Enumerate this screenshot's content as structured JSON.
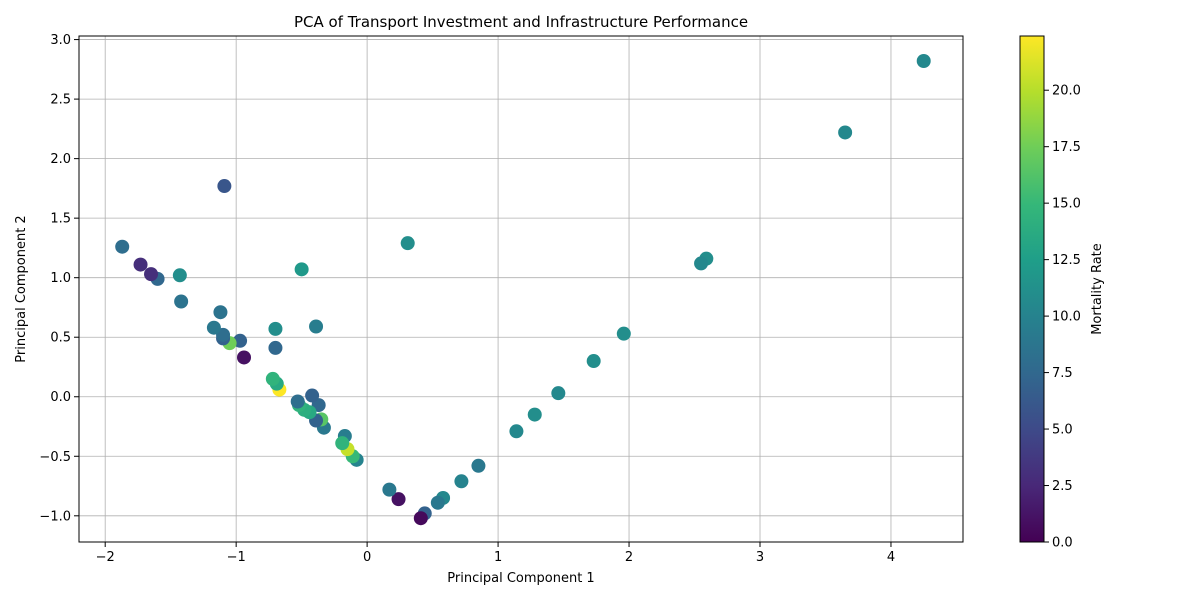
{
  "chart_data": {
    "type": "scatter",
    "title": "PCA of Transport Investment and Infrastructure Performance",
    "xlabel": "Principal Component 1",
    "ylabel": "Principal Component 2",
    "xlim": [
      -2.2,
      4.55
    ],
    "ylim": [
      -1.22,
      3.03
    ],
    "xticks": [
      -2,
      -1,
      0,
      1,
      2,
      3,
      4
    ],
    "xtick_labels": [
      "−2",
      "−1",
      "0",
      "1",
      "2",
      "3",
      "4"
    ],
    "yticks": [
      -1.0,
      -0.5,
      0.0,
      0.5,
      1.0,
      1.5,
      2.0,
      2.5,
      3.0
    ],
    "ytick_labels": [
      "−1.0",
      "−0.5",
      "0.0",
      "0.5",
      "1.0",
      "1.5",
      "2.0",
      "2.5",
      "3.0"
    ],
    "grid": true,
    "colorbar": {
      "label": "Mortality Rate",
      "min": 0.0,
      "max": 22.4,
      "colormap": "viridis",
      "ticks": [
        0.0,
        2.5,
        5.0,
        7.5,
        10.0,
        12.5,
        15.0,
        17.5,
        20.0
      ],
      "tick_labels": [
        "0.0",
        "2.5",
        "5.0",
        "7.5",
        "10.0",
        "12.5",
        "15.0",
        "17.5",
        "20.0"
      ]
    },
    "points": [
      {
        "x": 4.25,
        "y": 2.82,
        "c": 10.5
      },
      {
        "x": 3.65,
        "y": 2.22,
        "c": 10.5
      },
      {
        "x": 2.59,
        "y": 1.16,
        "c": 11.0
      },
      {
        "x": 2.55,
        "y": 1.12,
        "c": 10.5
      },
      {
        "x": 1.96,
        "y": 0.53,
        "c": 11.0
      },
      {
        "x": 1.73,
        "y": 0.3,
        "c": 11.0
      },
      {
        "x": 1.46,
        "y": 0.03,
        "c": 10.5
      },
      {
        "x": 1.28,
        "y": -0.15,
        "c": 11.0
      },
      {
        "x": 1.14,
        "y": -0.29,
        "c": 10.5
      },
      {
        "x": 0.85,
        "y": -0.58,
        "c": 9.0
      },
      {
        "x": 0.72,
        "y": -0.71,
        "c": 10.0
      },
      {
        "x": 0.58,
        "y": -0.85,
        "c": 10.5
      },
      {
        "x": 0.54,
        "y": -0.89,
        "c": 9.0
      },
      {
        "x": 0.44,
        "y": -0.98,
        "c": 7.0
      },
      {
        "x": 0.41,
        "y": -1.02,
        "c": 0.5
      },
      {
        "x": 0.24,
        "y": -0.86,
        "c": 1.0
      },
      {
        "x": 0.17,
        "y": -0.78,
        "c": 9.0
      },
      {
        "x": -0.08,
        "y": -0.53,
        "c": 10.0
      },
      {
        "x": -0.11,
        "y": -0.5,
        "c": 15.0
      },
      {
        "x": -0.15,
        "y": -0.44,
        "c": 20.5
      },
      {
        "x": -0.17,
        "y": -0.33,
        "c": 9.5
      },
      {
        "x": -0.19,
        "y": -0.39,
        "c": 14.5
      },
      {
        "x": -0.33,
        "y": -0.26,
        "c": 9.0
      },
      {
        "x": -0.35,
        "y": -0.19,
        "c": 16.5
      },
      {
        "x": -0.37,
        "y": -0.07,
        "c": 7.5
      },
      {
        "x": -0.39,
        "y": -0.2,
        "c": 7.0
      },
      {
        "x": -0.42,
        "y": 0.01,
        "c": 7.0
      },
      {
        "x": -0.44,
        "y": -0.13,
        "c": 13.5
      },
      {
        "x": -0.48,
        "y": -0.11,
        "c": 14.0
      },
      {
        "x": -0.52,
        "y": -0.07,
        "c": 14.5
      },
      {
        "x": -0.53,
        "y": -0.04,
        "c": 8.0
      },
      {
        "x": -0.67,
        "y": 0.06,
        "c": 22.4
      },
      {
        "x": -0.69,
        "y": 0.11,
        "c": 13.5
      },
      {
        "x": -0.72,
        "y": 0.15,
        "c": 14.5
      },
      {
        "x": -0.7,
        "y": 0.41,
        "c": 7.5
      },
      {
        "x": -0.7,
        "y": 0.57,
        "c": 11.0
      },
      {
        "x": -0.39,
        "y": 0.59,
        "c": 9.5
      },
      {
        "x": -0.5,
        "y": 1.07,
        "c": 12.0
      },
      {
        "x": 0.31,
        "y": 1.29,
        "c": 11.0
      },
      {
        "x": -0.94,
        "y": 0.33,
        "c": 1.0
      },
      {
        "x": -0.97,
        "y": 0.47,
        "c": 7.0
      },
      {
        "x": -1.05,
        "y": 0.45,
        "c": 17.5
      },
      {
        "x": -1.1,
        "y": 0.49,
        "c": 7.0
      },
      {
        "x": -1.1,
        "y": 0.52,
        "c": 8.0
      },
      {
        "x": -1.17,
        "y": 0.58,
        "c": 9.0
      },
      {
        "x": -1.12,
        "y": 0.71,
        "c": 8.5
      },
      {
        "x": -1.09,
        "y": 1.77,
        "c": 6.0
      },
      {
        "x": -1.42,
        "y": 0.8,
        "c": 8.5
      },
      {
        "x": -1.43,
        "y": 1.02,
        "c": 11.0
      },
      {
        "x": -1.6,
        "y": 0.99,
        "c": 7.5
      },
      {
        "x": -1.65,
        "y": 1.03,
        "c": 3.0
      },
      {
        "x": -1.73,
        "y": 1.11,
        "c": 3.0
      },
      {
        "x": -1.87,
        "y": 1.26,
        "c": 8.0
      }
    ]
  }
}
